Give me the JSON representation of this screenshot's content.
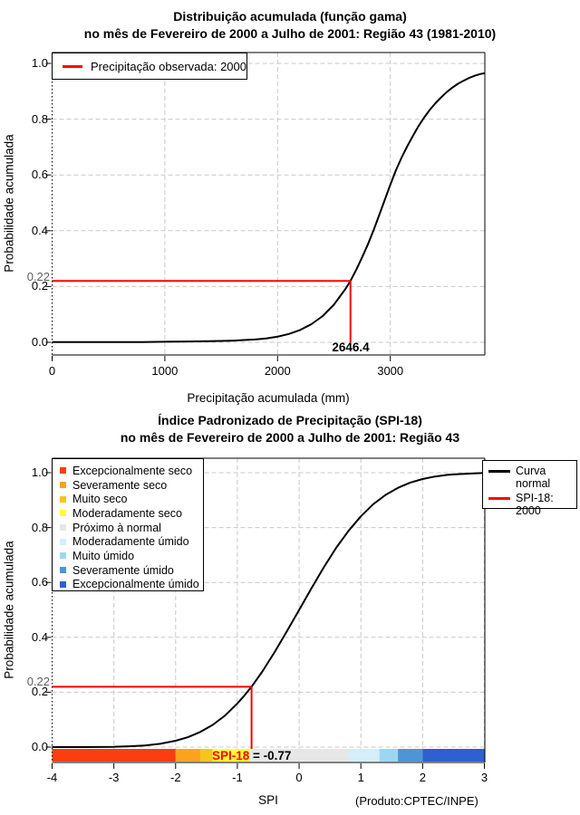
{
  "chart_data": [
    {
      "type": "line",
      "title_line1": "Distribuição acumulada (função gama)",
      "title_line2": "no mês de Fevereiro de 2000 a Julho de 2001: Região 43 (1981-2010)",
      "xlabel": "Precipitação acumulada (mm)",
      "ylabel": "Probabilidade acumulada",
      "xlim": [
        0,
        3838
      ],
      "ylim": [
        0,
        1
      ],
      "grid": "dashed",
      "x_ticks": [
        {
          "v": 0,
          "label": "0"
        },
        {
          "v": 1000,
          "label": "1000"
        },
        {
          "v": 2000,
          "label": "2000"
        },
        {
          "v": 3000,
          "label": "3000"
        }
      ],
      "y_ticks": [
        {
          "v": 0.0,
          "label": "0.0"
        },
        {
          "v": 0.2,
          "label": "0.2"
        },
        {
          "v": 0.4,
          "label": "0.4"
        },
        {
          "v": 0.6,
          "label": "0.6"
        },
        {
          "v": 0.8,
          "label": "0.8"
        },
        {
          "v": 1.0,
          "label": "1.0"
        }
      ],
      "curve": {
        "name": "gamma-cdf",
        "color": "#000000",
        "points": [
          [
            0,
            0.001
          ],
          [
            400,
            0.001
          ],
          [
            800,
            0.001
          ],
          [
            1000,
            0.002
          ],
          [
            1200,
            0.003
          ],
          [
            1400,
            0.004
          ],
          [
            1600,
            0.006
          ],
          [
            1700,
            0.008
          ],
          [
            1800,
            0.01
          ],
          [
            1900,
            0.014
          ],
          [
            2000,
            0.02
          ],
          [
            2100,
            0.03
          ],
          [
            2200,
            0.044
          ],
          [
            2300,
            0.065
          ],
          [
            2400,
            0.094
          ],
          [
            2500,
            0.135
          ],
          [
            2600,
            0.19
          ],
          [
            2646.4,
            0.22
          ],
          [
            2700,
            0.262
          ],
          [
            2750,
            0.305
          ],
          [
            2800,
            0.35
          ],
          [
            2850,
            0.4
          ],
          [
            2900,
            0.455
          ],
          [
            2950,
            0.51
          ],
          [
            3000,
            0.565
          ],
          [
            3050,
            0.617
          ],
          [
            3100,
            0.662
          ],
          [
            3150,
            0.703
          ],
          [
            3200,
            0.74
          ],
          [
            3250,
            0.775
          ],
          [
            3300,
            0.806
          ],
          [
            3350,
            0.833
          ],
          [
            3400,
            0.857
          ],
          [
            3450,
            0.878
          ],
          [
            3500,
            0.897
          ],
          [
            3550,
            0.913
          ],
          [
            3600,
            0.927
          ],
          [
            3650,
            0.938
          ],
          [
            3700,
            0.948
          ],
          [
            3750,
            0.956
          ],
          [
            3800,
            0.962
          ],
          [
            3838,
            0.965
          ]
        ]
      },
      "marker": {
        "x": 2646.4,
        "p": 0.22,
        "x_label": "2646.4",
        "p_label": "0.22",
        "color": "#ff0000"
      },
      "legend": {
        "label": "Precipitação observada: 2000",
        "color": "#ff0000"
      }
    },
    {
      "type": "line",
      "title_line1": "Índice Padronizado de Precipitação (SPI-18)",
      "title_line2": "no mês de Fevereiro de 2000 a Julho de 2001: Região 43",
      "xlabel": "SPI",
      "ylabel": "Probabilidade acumulada",
      "xlim": [
        -4,
        3
      ],
      "ylim": [
        0,
        1
      ],
      "grid": "dashed",
      "x_ticks": [
        {
          "v": -4,
          "label": "-4"
        },
        {
          "v": -3,
          "label": "-3"
        },
        {
          "v": -2,
          "label": "-2"
        },
        {
          "v": -1,
          "label": "-1"
        },
        {
          "v": 0,
          "label": "0"
        },
        {
          "v": 1,
          "label": "1"
        },
        {
          "v": 2,
          "label": "2"
        },
        {
          "v": 3,
          "label": "3"
        }
      ],
      "y_ticks": [
        {
          "v": 0.0,
          "label": "0.0"
        },
        {
          "v": 0.2,
          "label": "0.2"
        },
        {
          "v": 0.4,
          "label": "0.4"
        },
        {
          "v": 0.6,
          "label": "0.6"
        },
        {
          "v": 0.8,
          "label": "0.8"
        },
        {
          "v": 1.0,
          "label": "1.0"
        }
      ],
      "curve": {
        "name": "normal-cdf",
        "color": "#000000",
        "points": [
          [
            -4,
            0.0
          ],
          [
            -3.5,
            0.0
          ],
          [
            -3,
            0.001
          ],
          [
            -2.75,
            0.003
          ],
          [
            -2.5,
            0.006
          ],
          [
            -2.25,
            0.012
          ],
          [
            -2,
            0.023
          ],
          [
            -1.8,
            0.036
          ],
          [
            -1.6,
            0.055
          ],
          [
            -1.4,
            0.081
          ],
          [
            -1.2,
            0.115
          ],
          [
            -1,
            0.159
          ],
          [
            -0.9,
            0.184
          ],
          [
            -0.77,
            0.22
          ],
          [
            -0.6,
            0.274
          ],
          [
            -0.4,
            0.345
          ],
          [
            -0.2,
            0.421
          ],
          [
            0,
            0.5
          ],
          [
            0.2,
            0.579
          ],
          [
            0.4,
            0.655
          ],
          [
            0.6,
            0.726
          ],
          [
            0.8,
            0.788
          ],
          [
            1,
            0.841
          ],
          [
            1.2,
            0.885
          ],
          [
            1.4,
            0.919
          ],
          [
            1.6,
            0.945
          ],
          [
            1.8,
            0.964
          ],
          [
            2,
            0.977
          ],
          [
            2.2,
            0.986
          ],
          [
            2.4,
            0.992
          ],
          [
            2.6,
            0.995
          ],
          [
            2.8,
            0.997
          ],
          [
            3,
            0.999
          ]
        ]
      },
      "marker": {
        "x": -0.77,
        "p": 0.22,
        "label_red": "SPI-18",
        "label_black": " = -0.77",
        "p_label": "0.22",
        "color": "#ff0000"
      },
      "categories": [
        {
          "from": -4,
          "to": -2,
          "color": "#FA3E0F",
          "label": "Excepcionalmente seco"
        },
        {
          "from": -2,
          "to": -1.6,
          "color": "#FDA21F",
          "label": "Severamente seco"
        },
        {
          "from": -1.6,
          "to": -1.4,
          "color": "#F6C51D",
          "label": "Muito seco"
        },
        {
          "from": -1.4,
          "to": -0.8,
          "color": "#FFFF32",
          "label": "Moderadamente seco"
        },
        {
          "from": -0.8,
          "to": 0.8,
          "color": "#E7E7E7",
          "label": "Próximo à normal"
        },
        {
          "from": 0.8,
          "to": 1.3,
          "color": "#D4EFFA",
          "label": "Moderadamente úmido"
        },
        {
          "from": 1.3,
          "to": 1.6,
          "color": "#9ED6F2",
          "label": "Muito úmido"
        },
        {
          "from": 1.6,
          "to": 2,
          "color": "#4E95D5",
          "label": "Severamente úmido"
        },
        {
          "from": 2,
          "to": 3,
          "color": "#2F5FD0",
          "label": "Excepcionalmente úmido"
        }
      ],
      "line_legend": [
        {
          "label": "Curva normal",
          "color": "#000000"
        },
        {
          "label": "SPI-18: 2000",
          "color": "#ff0000"
        }
      ],
      "credit": "(Produto:CPTEC/INPE)"
    }
  ]
}
